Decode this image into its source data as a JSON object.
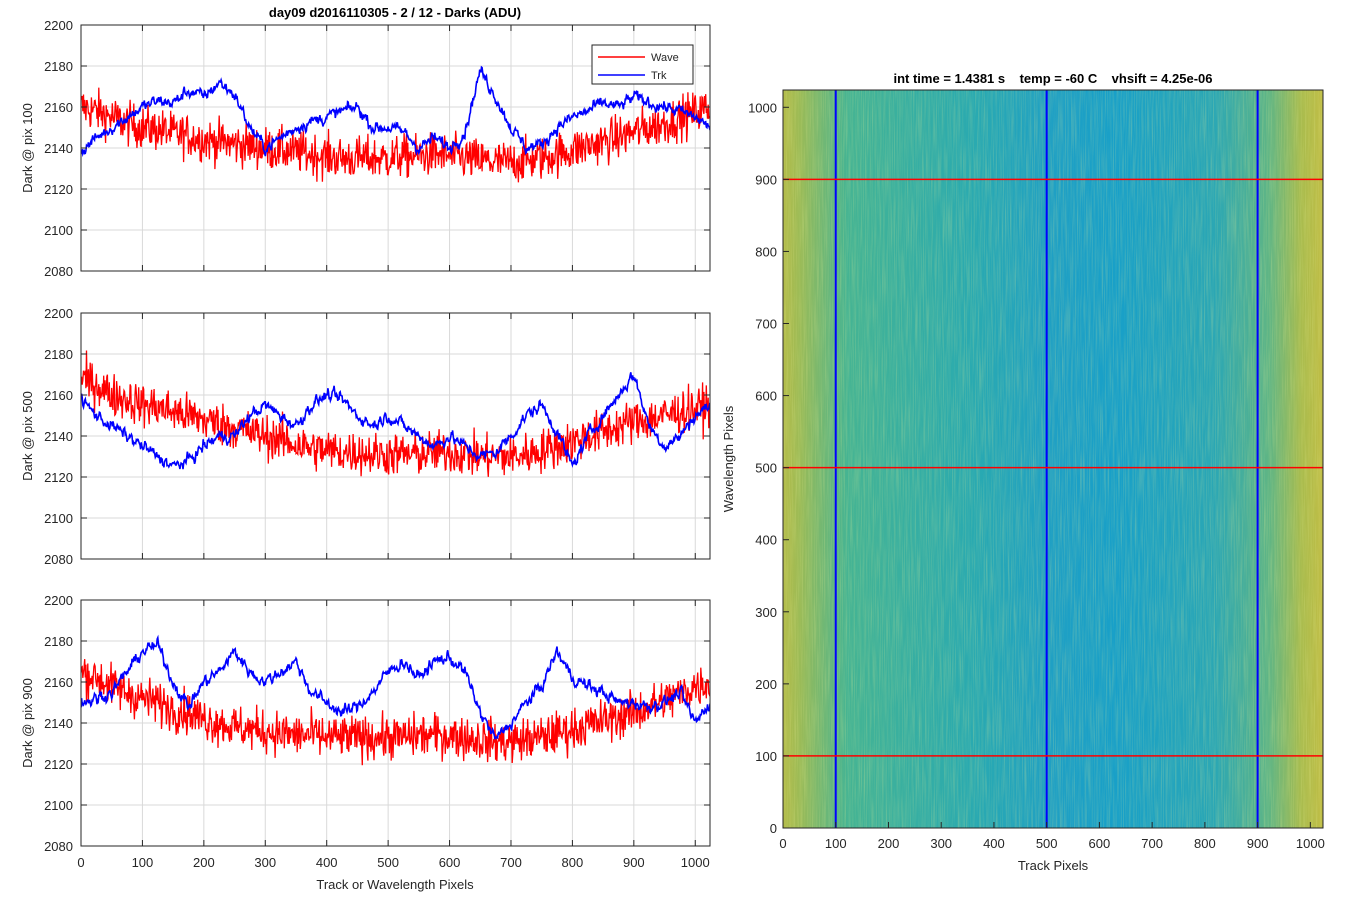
{
  "colors": {
    "wave": "#ff0000",
    "trk": "#0000ff",
    "grid": "#d9d9d9",
    "axes": "#262626",
    "image_low": "#1aa0c8",
    "image_mid": "#3fb59c",
    "image_high": "#b9bd47"
  },
  "chart_data": [
    {
      "type": "line",
      "title": "day09 d2016110305 - 2 / 12 - Darks (ADU)",
      "xlabel": "",
      "ylabel": "Dark @ pix 100",
      "xlim": [
        0,
        1024
      ],
      "ylim": [
        2080,
        2200
      ],
      "xticks": [
        0,
        100,
        200,
        300,
        400,
        500,
        600,
        700,
        800,
        900,
        1000
      ],
      "yticks": [
        2080,
        2100,
        2120,
        2140,
        2160,
        2180,
        2200
      ],
      "grid": true,
      "legend": {
        "placement": "top-right",
        "entries": [
          "Wave",
          "Trk"
        ]
      },
      "series": [
        {
          "name": "Wave",
          "color": "#ff0000",
          "x": [
            0,
            25,
            50,
            75,
            100,
            125,
            150,
            175,
            200,
            225,
            250,
            275,
            300,
            325,
            350,
            375,
            400,
            425,
            450,
            475,
            500,
            525,
            550,
            575,
            600,
            625,
            650,
            675,
            700,
            725,
            750,
            775,
            800,
            825,
            850,
            875,
            900,
            925,
            950,
            975,
            1000,
            1024
          ],
          "values": [
            2160,
            2158,
            2155,
            2152,
            2150,
            2149,
            2147,
            2146,
            2144,
            2143,
            2142,
            2141,
            2140,
            2139,
            2138,
            2137,
            2136,
            2135,
            2135,
            2135,
            2135,
            2136,
            2136,
            2137,
            2136,
            2135,
            2134,
            2133,
            2133,
            2134,
            2135,
            2137,
            2139,
            2141,
            2143,
            2145,
            2148,
            2150,
            2152,
            2155,
            2157,
            2160
          ],
          "noise": 10
        },
        {
          "name": "Trk",
          "color": "#0000ff",
          "x": [
            0,
            25,
            50,
            75,
            100,
            125,
            150,
            175,
            200,
            225,
            250,
            275,
            300,
            325,
            350,
            375,
            400,
            425,
            450,
            475,
            500,
            525,
            550,
            575,
            600,
            625,
            650,
            675,
            700,
            725,
            750,
            775,
            800,
            825,
            850,
            875,
            900,
            925,
            950,
            975,
            1000,
            1024
          ],
          "values": [
            2138,
            2145,
            2150,
            2155,
            2160,
            2163,
            2162,
            2168,
            2165,
            2172,
            2166,
            2150,
            2140,
            2145,
            2150,
            2153,
            2155,
            2158,
            2160,
            2150,
            2150,
            2148,
            2140,
            2145,
            2140,
            2148,
            2178,
            2165,
            2150,
            2140,
            2142,
            2150,
            2155,
            2158,
            2162,
            2160,
            2165,
            2162,
            2160,
            2158,
            2155,
            2150
          ],
          "noise": 4
        }
      ]
    },
    {
      "type": "line",
      "title": "",
      "xlabel": "",
      "ylabel": "Dark @ pix 500",
      "xlim": [
        0,
        1024
      ],
      "ylim": [
        2080,
        2200
      ],
      "xticks": [
        0,
        100,
        200,
        300,
        400,
        500,
        600,
        700,
        800,
        900,
        1000
      ],
      "yticks": [
        2080,
        2100,
        2120,
        2140,
        2160,
        2180,
        2200
      ],
      "grid": true,
      "series": [
        {
          "name": "Wave",
          "color": "#ff0000",
          "x": [
            0,
            25,
            50,
            75,
            100,
            125,
            150,
            175,
            200,
            225,
            250,
            275,
            300,
            325,
            350,
            375,
            400,
            425,
            450,
            475,
            500,
            525,
            550,
            575,
            600,
            625,
            650,
            675,
            700,
            725,
            750,
            775,
            800,
            825,
            850,
            875,
            900,
            925,
            950,
            975,
            1000,
            1024
          ],
          "values": [
            2168,
            2165,
            2160,
            2158,
            2155,
            2154,
            2152,
            2150,
            2148,
            2146,
            2144,
            2142,
            2140,
            2138,
            2136,
            2134,
            2133,
            2132,
            2132,
            2131,
            2131,
            2131,
            2131,
            2132,
            2132,
            2131,
            2130,
            2130,
            2130,
            2131,
            2133,
            2135,
            2137,
            2140,
            2142,
            2145,
            2147,
            2148,
            2150,
            2152,
            2153,
            2155
          ],
          "noise": 10
        },
        {
          "name": "Trk",
          "color": "#0000ff",
          "x": [
            0,
            25,
            50,
            75,
            100,
            125,
            150,
            175,
            200,
            225,
            250,
            275,
            300,
            325,
            350,
            375,
            400,
            425,
            450,
            475,
            500,
            525,
            550,
            575,
            600,
            625,
            650,
            675,
            700,
            725,
            750,
            775,
            800,
            825,
            850,
            875,
            900,
            925,
            950,
            975,
            1000,
            1024
          ],
          "values": [
            2158,
            2150,
            2145,
            2140,
            2135,
            2130,
            2125,
            2128,
            2135,
            2140,
            2140,
            2150,
            2155,
            2150,
            2145,
            2155,
            2160,
            2158,
            2150,
            2145,
            2150,
            2145,
            2140,
            2135,
            2140,
            2135,
            2130,
            2132,
            2140,
            2150,
            2155,
            2142,
            2125,
            2140,
            2150,
            2160,
            2170,
            2145,
            2135,
            2140,
            2150,
            2155
          ],
          "noise": 4
        }
      ]
    },
    {
      "type": "line",
      "title": "",
      "xlabel": "Track or Wavelength Pixels",
      "ylabel": "Dark @ pix 900",
      "xlim": [
        0,
        1024
      ],
      "ylim": [
        2080,
        2200
      ],
      "xticks": [
        0,
        100,
        200,
        300,
        400,
        500,
        600,
        700,
        800,
        900,
        1000
      ],
      "yticks": [
        2080,
        2100,
        2120,
        2140,
        2160,
        2180,
        2200
      ],
      "grid": true,
      "series": [
        {
          "name": "Wave",
          "color": "#ff0000",
          "x": [
            0,
            25,
            50,
            75,
            100,
            125,
            150,
            175,
            200,
            225,
            250,
            275,
            300,
            325,
            350,
            375,
            400,
            425,
            450,
            475,
            500,
            525,
            550,
            575,
            600,
            625,
            650,
            675,
            700,
            725,
            750,
            775,
            800,
            825,
            850,
            875,
            900,
            925,
            950,
            975,
            1000,
            1024
          ],
          "values": [
            2165,
            2162,
            2158,
            2155,
            2152,
            2150,
            2147,
            2145,
            2142,
            2140,
            2138,
            2137,
            2136,
            2135,
            2134,
            2134,
            2133,
            2133,
            2133,
            2133,
            2133,
            2133,
            2134,
            2134,
            2134,
            2133,
            2132,
            2131,
            2131,
            2132,
            2133,
            2135,
            2137,
            2139,
            2141,
            2143,
            2145,
            2148,
            2151,
            2154,
            2158,
            2160
          ],
          "noise": 10
        },
        {
          "name": "Trk",
          "color": "#0000ff",
          "x": [
            0,
            25,
            50,
            75,
            100,
            125,
            150,
            175,
            200,
            225,
            250,
            275,
            300,
            325,
            350,
            375,
            400,
            425,
            450,
            475,
            500,
            525,
            550,
            575,
            600,
            625,
            650,
            675,
            700,
            725,
            750,
            775,
            800,
            825,
            850,
            875,
            900,
            925,
            950,
            975,
            1000,
            1024
          ],
          "values": [
            2150,
            2152,
            2155,
            2165,
            2175,
            2178,
            2160,
            2148,
            2160,
            2165,
            2175,
            2165,
            2160,
            2165,
            2170,
            2155,
            2150,
            2145,
            2148,
            2155,
            2165,
            2170,
            2162,
            2170,
            2172,
            2165,
            2145,
            2132,
            2140,
            2150,
            2158,
            2175,
            2162,
            2158,
            2155,
            2150,
            2150,
            2148,
            2150,
            2155,
            2140,
            2150
          ],
          "noise": 4
        }
      ]
    },
    {
      "type": "heatmap",
      "title": "int time = 1.4381 s    temp = -60 C    vhsift = 4.25e-06",
      "xlabel": "Track Pixels",
      "ylabel": "Wavelength Pixels",
      "xlim": [
        0,
        1024
      ],
      "ylim": [
        0,
        1024
      ],
      "xticks": [
        0,
        100,
        200,
        300,
        400,
        500,
        600,
        700,
        800,
        900,
        1000
      ],
      "yticks": [
        0,
        100,
        200,
        300,
        400,
        500,
        600,
        700,
        800,
        900,
        1000
      ],
      "grid": false,
      "vertical_lines": [
        100,
        500,
        900
      ],
      "horizontal_lines": [
        100,
        500,
        900
      ]
    }
  ]
}
